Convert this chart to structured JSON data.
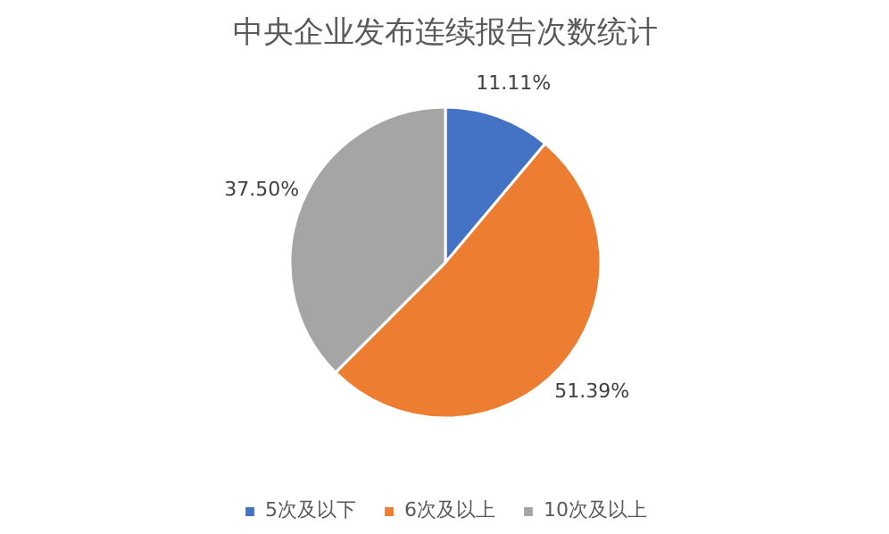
{
  "chart_data": {
    "type": "pie",
    "title": "中央企业发布连续报告次数统计",
    "categories": [
      "5次及以下",
      "6次及以上",
      "10次及以上"
    ],
    "values": [
      11.11,
      51.39,
      37.5
    ],
    "colors": [
      "#4472c4",
      "#ed7d31",
      "#a5a5a5"
    ],
    "value_labels": [
      "11.11%",
      "51.39%",
      "37.50%"
    ],
    "legend": "bottom"
  }
}
